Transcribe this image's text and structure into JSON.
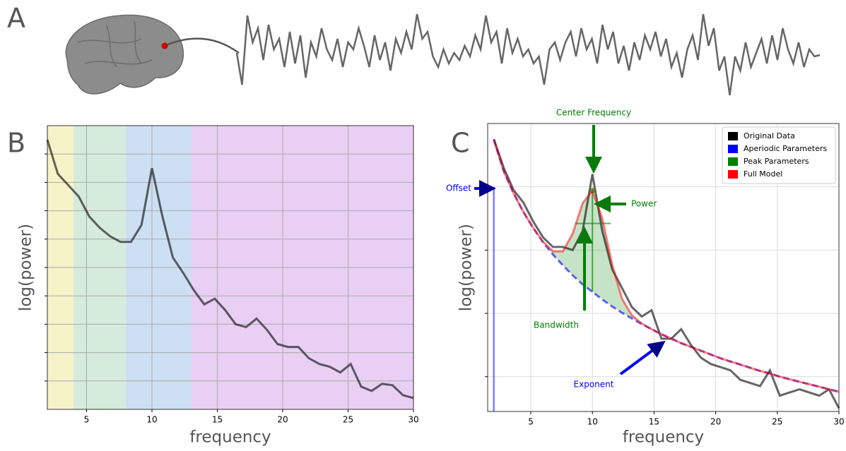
{
  "chart_data": [
    {
      "type": "line",
      "panel": "A",
      "color": "#000000",
      "ylim": [
        -65,
        65
      ],
      "values": [
        0,
        -45,
        53,
        15,
        35,
        -10,
        40,
        5,
        20,
        -20,
        30,
        -15,
        25,
        -35,
        15,
        -5,
        35,
        5,
        -10,
        20,
        -20,
        15,
        5,
        35,
        10,
        -20,
        25,
        -10,
        15,
        -25,
        20,
        0,
        30,
        5,
        55,
        20,
        30,
        -5,
        -20,
        5,
        -15,
        0,
        -10,
        10,
        -5,
        25,
        5,
        53,
        15,
        30,
        -15,
        35,
        0,
        20,
        -5,
        5,
        -15,
        -5,
        -45,
        5,
        15,
        -10,
        15,
        30,
        -5,
        35,
        5,
        20,
        -15,
        40,
        5,
        30,
        -15,
        10,
        -25,
        15,
        -10,
        25,
        5,
        30,
        -5,
        20,
        -20,
        0,
        -35,
        5,
        25,
        -10,
        55,
        10,
        35,
        -25,
        -5,
        -60,
        -5,
        -25,
        15,
        -20,
        0,
        20,
        -15,
        25,
        -10,
        35,
        5,
        -15,
        15,
        -20,
        5,
        -5,
        -3
      ]
    },
    {
      "type": "line",
      "panel": "B",
      "xlabel": "frequency",
      "ylabel": "log(power)",
      "color": "#000000",
      "x": [
        2,
        2.8,
        3.6,
        4.4,
        5.2,
        6,
        6.8,
        7.6,
        8.4,
        9.2,
        10,
        10.8,
        11.6,
        12.4,
        13.2,
        14,
        14.8,
        15.6,
        16.4,
        17.2,
        18,
        18.8,
        19.6,
        20.4,
        21.2,
        22,
        22.8,
        23.6,
        24.4,
        25.2,
        26,
        26.8,
        27.6,
        28.4,
        29.2,
        30
      ],
      "values": [
        9.5,
        8.3,
        7.9,
        7.5,
        6.8,
        6.4,
        6.1,
        5.9,
        5.9,
        6.5,
        8.5,
        6.8,
        5.35,
        4.8,
        4.2,
        3.7,
        3.9,
        3.5,
        3.0,
        2.9,
        3.2,
        2.8,
        2.3,
        2.2,
        2.2,
        1.8,
        1.6,
        1.5,
        1.3,
        1.6,
        0.8,
        0.65,
        0.9,
        0.85,
        0.5,
        0.4
      ],
      "bands": [
        {
          "range": [
            2,
            4
          ],
          "color": "#f7f3c8"
        },
        {
          "range": [
            4,
            8
          ],
          "color": "#d5ecdc"
        },
        {
          "range": [
            8,
            13
          ],
          "color": "#cde0f3"
        },
        {
          "range": [
            13,
            30
          ],
          "color": "#e9cff4"
        }
      ],
      "xlim": [
        2,
        30
      ],
      "ylim": [
        0,
        10
      ],
      "xticks": [
        5,
        10,
        15,
        20,
        25,
        30
      ],
      "yticks": [
        1,
        2,
        3,
        4,
        5,
        6,
        7,
        8,
        9
      ],
      "grid": true
    },
    {
      "type": "line",
      "panel": "C",
      "xlabel": "frequency",
      "ylabel": "log(power)",
      "legend": "upper-right",
      "x": [
        2,
        2.8,
        3.6,
        4.4,
        5.2,
        6,
        6.8,
        7.6,
        8.4,
        9.2,
        10,
        10.8,
        11.6,
        12.4,
        13.2,
        14,
        14.8,
        15.6,
        16.4,
        17.2,
        18,
        18.8,
        19.6,
        20.4,
        21.2,
        22,
        22.8,
        23.6,
        24.4,
        25.2,
        26,
        26.8,
        27.6,
        28.4,
        29.2,
        30
      ],
      "series": [
        {
          "name": "Original Data",
          "color": "#000000",
          "values": [
            4.75,
            4.3,
            3.95,
            3.75,
            3.45,
            3.2,
            3.05,
            3.05,
            3.0,
            3.3,
            4.2,
            3.3,
            2.7,
            2.4,
            2.1,
            1.95,
            2.05,
            1.6,
            1.6,
            1.75,
            1.5,
            1.3,
            1.2,
            1.15,
            1.1,
            0.95,
            0.9,
            0.85,
            1.1,
            0.7,
            0.75,
            0.8,
            0.75,
            0.7,
            0.8,
            0.5
          ]
        },
        {
          "name": "Aperiodic Parameters",
          "color": "#0000ff",
          "line_style": "dashed",
          "offset": 4.0,
          "values": [
            4.75,
            4.25,
            3.9,
            3.6,
            3.35,
            3.12,
            2.93,
            2.76,
            2.6,
            2.46,
            2.34,
            2.22,
            2.11,
            2.01,
            1.92,
            1.83,
            1.75,
            1.67,
            1.6,
            1.53,
            1.47,
            1.41,
            1.35,
            1.29,
            1.24,
            1.19,
            1.14,
            1.09,
            1.05,
            1.0,
            0.96,
            0.92,
            0.88,
            0.84,
            0.8,
            0.76
          ]
        },
        {
          "name": "Peak Parameters",
          "color": "#008000",
          "center": 10,
          "peak_power": 3.94,
          "bandwidth": [
            8.6,
            11.5
          ],
          "bandwidth_level": 3.42
        },
        {
          "name": "Full Model",
          "color": "#ff0000",
          "values": [
            4.75,
            4.25,
            3.9,
            3.6,
            3.35,
            3.13,
            2.98,
            2.98,
            3.26,
            3.74,
            3.94,
            3.5,
            2.77,
            2.23,
            1.97,
            1.84,
            1.75,
            1.67,
            1.6,
            1.53,
            1.47,
            1.41,
            1.35,
            1.29,
            1.24,
            1.19,
            1.14,
            1.09,
            1.05,
            1.0,
            0.96,
            0.92,
            0.88,
            0.84,
            0.8,
            0.76
          ]
        }
      ],
      "annotations": [
        {
          "text": "Center Frequency",
          "color": "#008000"
        },
        {
          "text": "Offset",
          "color": "#0000ff"
        },
        {
          "text": "Power",
          "color": "#008000"
        },
        {
          "text": "Bandwidth",
          "color": "#008000"
        },
        {
          "text": "Exponent",
          "color": "#0000ff"
        }
      ],
      "xlim": [
        1.5,
        30
      ],
      "ylim": [
        0.45,
        5
      ],
      "xticks": [
        5,
        10,
        15,
        20,
        25,
        30
      ],
      "yticks": [
        1,
        2,
        3,
        4
      ],
      "grid": true
    }
  ]
}
